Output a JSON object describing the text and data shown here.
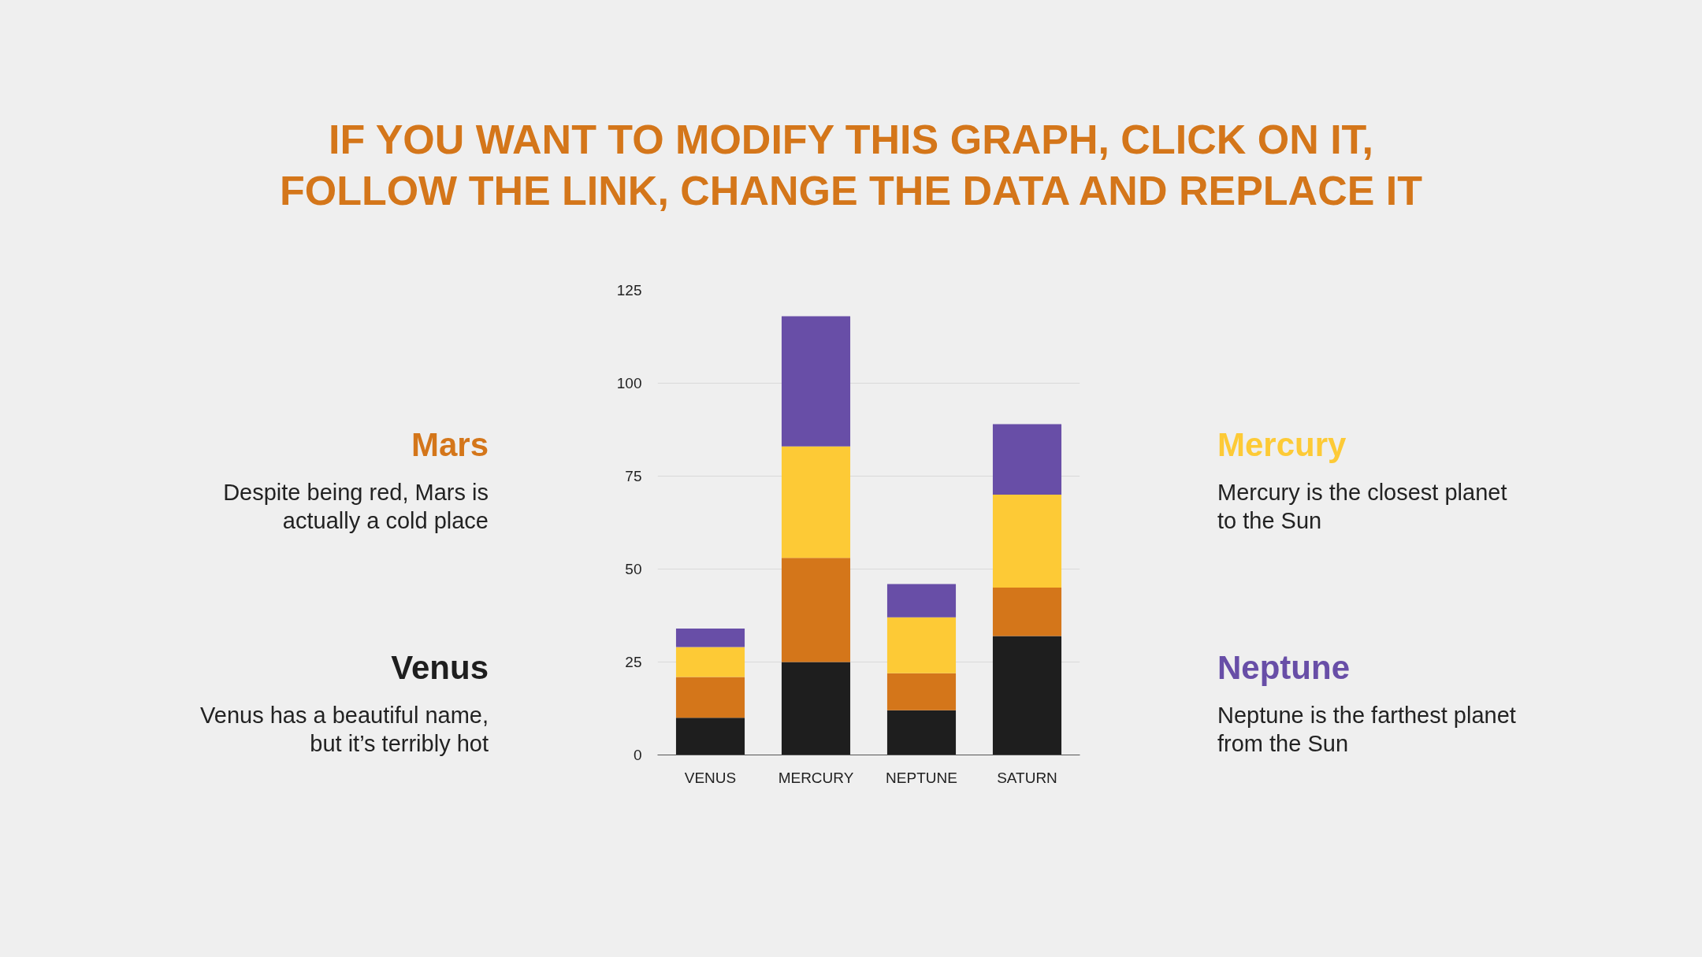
{
  "chart_data": {
    "type": "bar",
    "title": "IF YOU WANT TO MODIFY THIS GRAPH, CLICK ON IT, FOLLOW THE LINK, CHANGE THE DATA AND REPLACE IT",
    "categories": [
      "VENUS",
      "MERCURY",
      "NEPTUNE",
      "SATURN"
    ],
    "stacked": true,
    "series": [
      {
        "name": "Venus",
        "color": "#1e1e1e",
        "values": [
          10,
          25,
          12,
          32
        ]
      },
      {
        "name": "Mars",
        "color": "#d4761a",
        "values": [
          11,
          28,
          10,
          13
        ]
      },
      {
        "name": "Mercury",
        "color": "#fdca36",
        "values": [
          8,
          30,
          15,
          25
        ]
      },
      {
        "name": "Neptune",
        "color": "#684ea7",
        "values": [
          5,
          35,
          9,
          19
        ]
      }
    ],
    "annotations": [
      "Venus has a beautiful name, but it’s terribly hot",
      "Despite being red, Mars is actually a cold place",
      "Mercury is the closest planet to the Sun",
      "Neptune is the farthest planet from the Sun"
    ],
    "ylim": [
      0,
      125
    ],
    "yticks": [
      0,
      25,
      50,
      75,
      100,
      125
    ],
    "grid": "y",
    "legend": "left"
  }
}
